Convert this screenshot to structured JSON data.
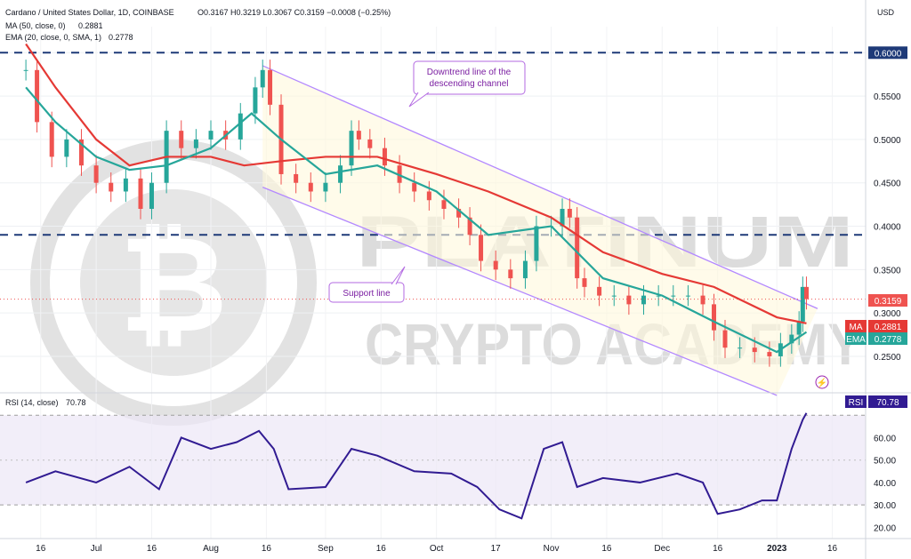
{
  "header": {
    "symbol_line": "Cardano / United States Dollar, 1D, COINBASE",
    "ohlc": "O0.3167  H0.3219  L0.3067  C0.3159  −0.0008 (−0.25%)",
    "ma_line": "MA (50, close, 0)",
    "ma_value": "0.2881",
    "ema_line": "EMA (20, close, 0, SMA, 1)",
    "ema_value": "0.2778",
    "rsi_line": "RSI (14, close)",
    "rsi_value": "70.78",
    "currency": "USD"
  },
  "colors": {
    "candle_up": "#26a69a",
    "candle_down": "#ef5350",
    "ma": "#e53935",
    "ema": "#26a69a",
    "rsi": "#311b92",
    "channel": "#b388ff",
    "level": "#1e3a78",
    "watermark": "#d6d6d6"
  },
  "watermark": {
    "line1": "PLATINUM",
    "line2": "CRYPTO ACADEMY"
  },
  "annotations": {
    "downtrend": [
      "Downtrend line of the",
      "descending channel"
    ],
    "support": "Support line"
  },
  "price_badges": {
    "last": "0.3159",
    "ma_label": "MA",
    "ma": "0.2881",
    "ema_label": "EMA",
    "ema": "0.2778",
    "rsi_label": "RSI",
    "rsi": "70.78"
  },
  "chart_data": {
    "type": "candlestick",
    "title": "Cardano / United States Dollar, 1D, COINBASE",
    "ylabel": "USD",
    "ylim": [
      0.21,
      0.63
    ],
    "y_ticks": [
      "0.6000",
      "0.5500",
      "0.5000",
      "0.4500",
      "0.4000",
      "0.3500",
      "0.3000",
      "0.2500"
    ],
    "x_ticks": [
      "16",
      "Jul",
      "16",
      "Aug",
      "16",
      "Sep",
      "16",
      "Oct",
      "17",
      "Nov",
      "16",
      "Dec",
      "16",
      "2023",
      "16"
    ],
    "horizontal_levels": [
      0.6,
      0.39
    ],
    "channel": {
      "upper": [
        [
          "2022-08-15",
          0.585
        ],
        [
          "2023-01-12",
          0.305
        ]
      ],
      "lower": [
        [
          "2022-08-15",
          0.445
        ],
        [
          "2023-01-01",
          0.205
        ]
      ]
    },
    "series": [
      {
        "name": "Cardano / United States Dollar",
        "values": [
          [
            "2022-06-12",
            0.58
          ],
          [
            "2022-06-15",
            0.52
          ],
          [
            "2022-06-19",
            0.48
          ],
          [
            "2022-06-23",
            0.5
          ],
          [
            "2022-06-27",
            0.47
          ],
          [
            "2022-07-01",
            0.45
          ],
          [
            "2022-07-05",
            0.44
          ],
          [
            "2022-07-09",
            0.455
          ],
          [
            "2022-07-13",
            0.42
          ],
          [
            "2022-07-16",
            0.45
          ],
          [
            "2022-07-20",
            0.51
          ],
          [
            "2022-07-24",
            0.49
          ],
          [
            "2022-07-28",
            0.5
          ],
          [
            "2022-08-01",
            0.51
          ],
          [
            "2022-08-05",
            0.5
          ],
          [
            "2022-08-09",
            0.53
          ],
          [
            "2022-08-13",
            0.56
          ],
          [
            "2022-08-15",
            0.58
          ],
          [
            "2022-08-17",
            0.54
          ],
          [
            "2022-08-20",
            0.46
          ],
          [
            "2022-08-24",
            0.45
          ],
          [
            "2022-08-28",
            0.44
          ],
          [
            "2022-09-01",
            0.45
          ],
          [
            "2022-09-05",
            0.47
          ],
          [
            "2022-09-08",
            0.51
          ],
          [
            "2022-09-10",
            0.5
          ],
          [
            "2022-09-13",
            0.49
          ],
          [
            "2022-09-17",
            0.47
          ],
          [
            "2022-09-21",
            0.45
          ],
          [
            "2022-09-25",
            0.44
          ],
          [
            "2022-09-29",
            0.43
          ],
          [
            "2022-10-03",
            0.42
          ],
          [
            "2022-10-07",
            0.41
          ],
          [
            "2022-10-10",
            0.39
          ],
          [
            "2022-10-13",
            0.36
          ],
          [
            "2022-10-17",
            0.35
          ],
          [
            "2022-10-21",
            0.34
          ],
          [
            "2022-10-25",
            0.36
          ],
          [
            "2022-10-28",
            0.4
          ],
          [
            "2022-11-01",
            0.4
          ],
          [
            "2022-11-04",
            0.42
          ],
          [
            "2022-11-06",
            0.41
          ],
          [
            "2022-11-08",
            0.34
          ],
          [
            "2022-11-10",
            0.33
          ],
          [
            "2022-11-14",
            0.32
          ],
          [
            "2022-11-18",
            0.32
          ],
          [
            "2022-11-22",
            0.31
          ],
          [
            "2022-11-26",
            0.32
          ],
          [
            "2022-11-30",
            0.32
          ],
          [
            "2022-12-04",
            0.32
          ],
          [
            "2022-12-08",
            0.32
          ],
          [
            "2022-12-12",
            0.31
          ],
          [
            "2022-12-15",
            0.28
          ],
          [
            "2022-12-18",
            0.26
          ],
          [
            "2022-12-22",
            0.26
          ],
          [
            "2022-12-26",
            0.255
          ],
          [
            "2022-12-30",
            0.25
          ],
          [
            "2023-01-02",
            0.265
          ],
          [
            "2023-01-05",
            0.275
          ],
          [
            "2023-01-07",
            0.29
          ],
          [
            "2023-01-08",
            0.33
          ],
          [
            "2023-01-09",
            0.316
          ]
        ]
      },
      {
        "name": "MA (50, close, 0)",
        "values": [
          [
            "2022-06-12",
            0.61
          ],
          [
            "2022-06-20",
            0.56
          ],
          [
            "2022-07-01",
            0.5
          ],
          [
            "2022-07-10",
            0.47
          ],
          [
            "2022-07-20",
            0.48
          ],
          [
            "2022-08-01",
            0.48
          ],
          [
            "2022-08-10",
            0.47
          ],
          [
            "2022-08-20",
            0.475
          ],
          [
            "2022-09-01",
            0.48
          ],
          [
            "2022-09-15",
            0.48
          ],
          [
            "2022-10-01",
            0.46
          ],
          [
            "2022-10-15",
            0.44
          ],
          [
            "2022-11-01",
            0.41
          ],
          [
            "2022-11-15",
            0.37
          ],
          [
            "2022-12-01",
            0.345
          ],
          [
            "2022-12-15",
            0.33
          ],
          [
            "2023-01-01",
            0.295
          ],
          [
            "2023-01-09",
            0.288
          ]
        ]
      },
      {
        "name": "EMA (20, close, 0, SMA, 1)",
        "values": [
          [
            "2022-06-12",
            0.56
          ],
          [
            "2022-06-20",
            0.52
          ],
          [
            "2022-07-01",
            0.48
          ],
          [
            "2022-07-10",
            0.465
          ],
          [
            "2022-07-20",
            0.47
          ],
          [
            "2022-08-01",
            0.49
          ],
          [
            "2022-08-12",
            0.53
          ],
          [
            "2022-08-20",
            0.5
          ],
          [
            "2022-09-01",
            0.46
          ],
          [
            "2022-09-15",
            0.47
          ],
          [
            "2022-10-01",
            0.44
          ],
          [
            "2022-10-15",
            0.39
          ],
          [
            "2022-11-01",
            0.4
          ],
          [
            "2022-11-15",
            0.34
          ],
          [
            "2022-12-01",
            0.32
          ],
          [
            "2022-12-15",
            0.29
          ],
          [
            "2023-01-01",
            0.255
          ],
          [
            "2023-01-09",
            0.278
          ]
        ]
      }
    ],
    "rsi": {
      "name": "RSI (14, close)",
      "ylim": [
        15,
        80
      ],
      "y_ticks": [
        "60.00",
        "50.00",
        "40.00",
        "30.00",
        "20.00"
      ],
      "bands": [
        30,
        70
      ],
      "values": [
        [
          "2022-06-12",
          40
        ],
        [
          "2022-06-20",
          45
        ],
        [
          "2022-07-01",
          40
        ],
        [
          "2022-07-10",
          47
        ],
        [
          "2022-07-18",
          37
        ],
        [
          "2022-07-24",
          60
        ],
        [
          "2022-08-01",
          55
        ],
        [
          "2022-08-08",
          58
        ],
        [
          "2022-08-14",
          63
        ],
        [
          "2022-08-18",
          55
        ],
        [
          "2022-08-22",
          37
        ],
        [
          "2022-09-01",
          38
        ],
        [
          "2022-09-08",
          55
        ],
        [
          "2022-09-15",
          52
        ],
        [
          "2022-09-25",
          45
        ],
        [
          "2022-10-05",
          44
        ],
        [
          "2022-10-12",
          38
        ],
        [
          "2022-10-18",
          28
        ],
        [
          "2022-10-24",
          24
        ],
        [
          "2022-10-30",
          55
        ],
        [
          "2022-11-04",
          58
        ],
        [
          "2022-11-08",
          38
        ],
        [
          "2022-11-15",
          42
        ],
        [
          "2022-11-25",
          40
        ],
        [
          "2022-12-05",
          44
        ],
        [
          "2022-12-12",
          40
        ],
        [
          "2022-12-16",
          26
        ],
        [
          "2022-12-22",
          28
        ],
        [
          "2022-12-28",
          32
        ],
        [
          "2023-01-01",
          32
        ],
        [
          "2023-01-05",
          55
        ],
        [
          "2023-01-08",
          68
        ],
        [
          "2023-01-09",
          71
        ]
      ]
    }
  }
}
